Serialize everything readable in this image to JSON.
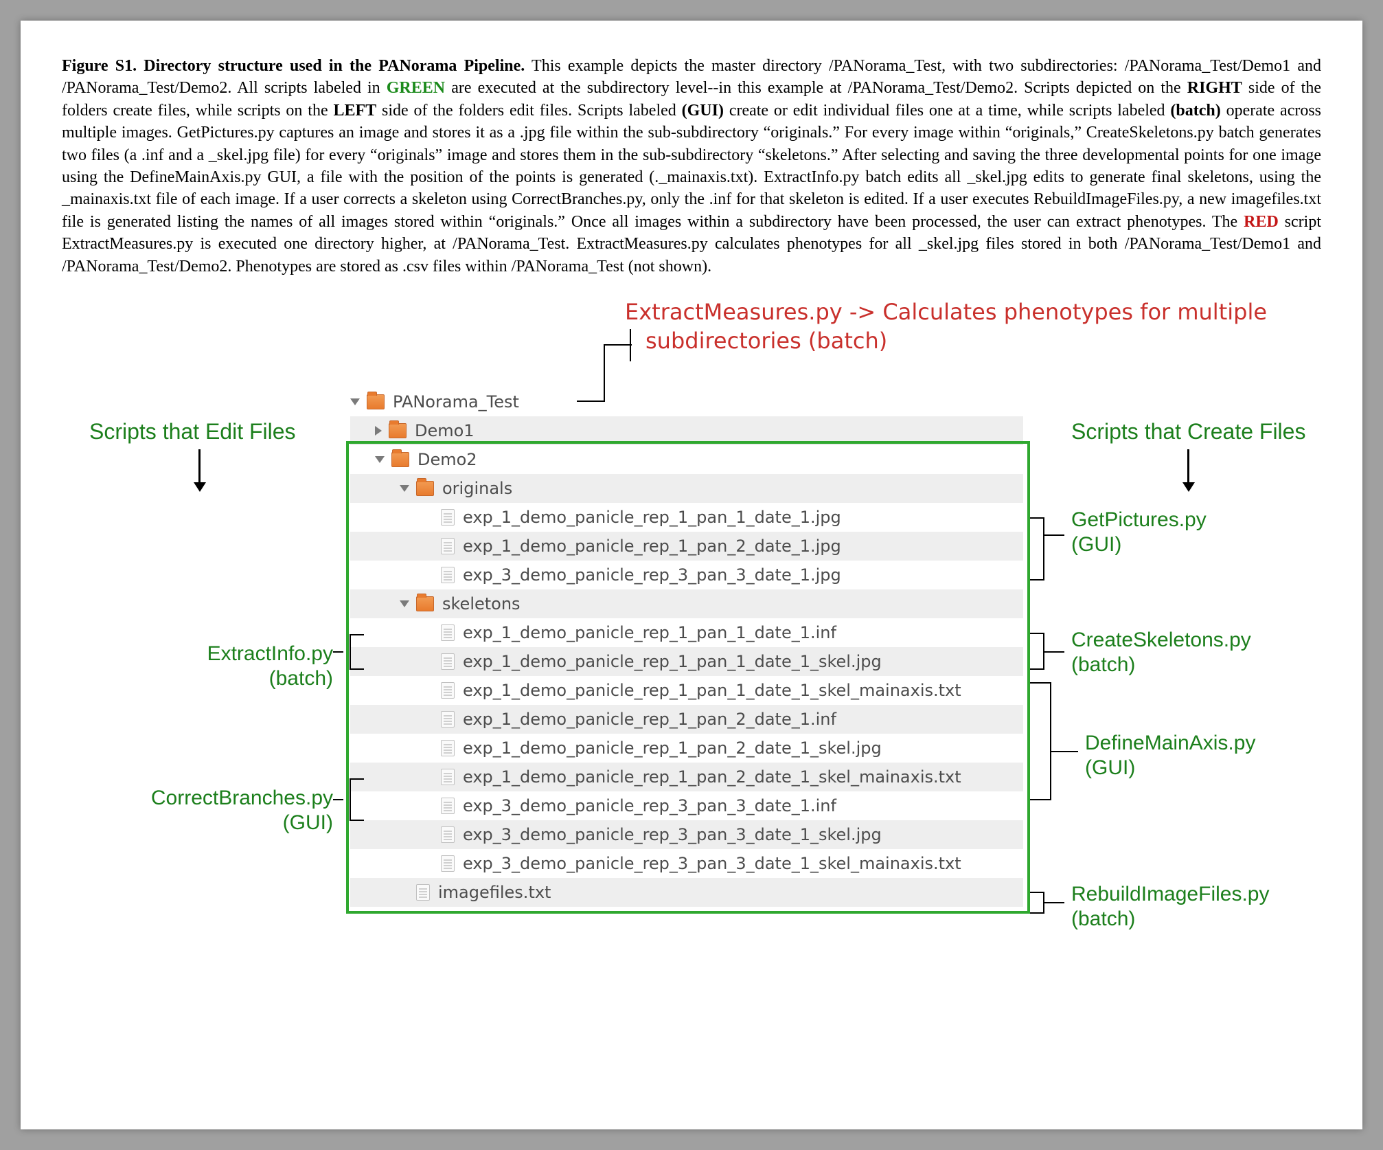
{
  "caption": {
    "title": "Figure S1.  Directory structure used in the PANorama Pipeline.",
    "body_parts": [
      {
        "t": "plain",
        "v": " This example depicts the master directory /PANorama_Test, with two subdirectories: /PANorama_Test/Demo1 and /PANorama_Test/Demo2.  All scripts labeled in "
      },
      {
        "t": "green",
        "v": "GREEN"
      },
      {
        "t": "plain",
        "v": " are executed at the subdirectory level--in this example at /PANorama_Test/Demo2.  Scripts depicted on the "
      },
      {
        "t": "bold",
        "v": "RIGHT"
      },
      {
        "t": "plain",
        "v": " side of the folders create files, while scripts on the "
      },
      {
        "t": "bold",
        "v": "LEFT"
      },
      {
        "t": "plain",
        "v": " side of the folders edit files.  Scripts labeled "
      },
      {
        "t": "bold",
        "v": "(GUI)"
      },
      {
        "t": "plain",
        "v": " create or edit individual files one at a time, while scripts labeled "
      },
      {
        "t": "bold",
        "v": "(batch)"
      },
      {
        "t": "plain",
        "v": " operate across multiple images.   GetPictures.py captures an image and stores it as a .jpg file within the sub-subdirectory “originals.”  For every image within “originals,” CreateSkeletons.py batch generates two files (a .inf and a _skel.jpg file) for every “originals” image and stores them in the sub-subdirectory “skeletons.”  After selecting and saving the three developmental points for one image using the DefineMainAxis.py GUI, a file with the position of the points is generated (._mainaxis.txt).  ExtractInfo.py batch edits all _skel.jpg edits to generate final skeletons, using the _mainaxis.txt file of each image.  If a user corrects a skeleton using CorrectBranches.py, only the .inf for that skeleton is edited.  If a user executes RebuildImageFiles.py, a new imagefiles.txt file is generated listing the names of all images stored within “originals.”  Once all images within a subdirectory have been processed, the user can extract phenotypes.  The "
      },
      {
        "t": "red",
        "v": "RED"
      },
      {
        "t": "plain",
        "v": " script ExtractMeasures.py is executed one directory higher, at /PANorama_Test.  ExtractMeasures.py calculates phenotypes for all _skel.jpg files stored in both /PANorama_Test/Demo1 and /PANorama_Test/Demo2.  Phenotypes are stored as .csv files within /PANorama_Test (not shown)."
      }
    ]
  },
  "colors": {
    "green": "#1c7f1c",
    "green_box": "#2fa82f",
    "red": "#c9302c",
    "folder": "#e87b2e",
    "row_alt": "#eeeeee",
    "text_grey": "#4c4c4c"
  },
  "red_annotation": {
    "line1": "ExtractMeasures.py -> Calculates phenotypes for multiple",
    "line2": "subdirectories (batch)"
  },
  "headers": {
    "left": "Scripts that Edit Files",
    "right": "Scripts that Create Files"
  },
  "left_scripts": [
    {
      "name": "ExtractInfo.py",
      "type": "(batch)"
    },
    {
      "name": "CorrectBranches.py",
      "type": "(GUI)"
    }
  ],
  "right_scripts": [
    {
      "name": "GetPictures.py",
      "type": "(GUI)"
    },
    {
      "name": "CreateSkeletons.py",
      "type": "(batch)"
    },
    {
      "name": "DefineMainAxis.py",
      "type": "(GUI)"
    },
    {
      "name": "RebuildImageFiles.py",
      "type": "(batch)"
    }
  ],
  "tree": [
    {
      "indent": 0,
      "tri": "down",
      "icon": "folder",
      "label": "PANorama_Test",
      "alt": false
    },
    {
      "indent": 1,
      "tri": "right",
      "icon": "folder",
      "label": "Demo1",
      "alt": true
    },
    {
      "indent": 1,
      "tri": "down",
      "icon": "folder",
      "label": "Demo2",
      "alt": false
    },
    {
      "indent": 2,
      "tri": "down",
      "icon": "folder",
      "label": "originals",
      "alt": true
    },
    {
      "indent": 3,
      "tri": "sp",
      "icon": "file",
      "label": "exp_1_demo_panicle_rep_1_pan_1_date_1.jpg",
      "alt": false
    },
    {
      "indent": 3,
      "tri": "sp",
      "icon": "file",
      "label": "exp_1_demo_panicle_rep_1_pan_2_date_1.jpg",
      "alt": true
    },
    {
      "indent": 3,
      "tri": "sp",
      "icon": "file",
      "label": "exp_3_demo_panicle_rep_3_pan_3_date_1.jpg",
      "alt": false
    },
    {
      "indent": 2,
      "tri": "down",
      "icon": "folder",
      "label": "skeletons",
      "alt": true
    },
    {
      "indent": 3,
      "tri": "sp",
      "icon": "file",
      "label": "exp_1_demo_panicle_rep_1_pan_1_date_1.inf",
      "alt": false
    },
    {
      "indent": 3,
      "tri": "sp",
      "icon": "file",
      "label": "exp_1_demo_panicle_rep_1_pan_1_date_1_skel.jpg",
      "alt": true
    },
    {
      "indent": 3,
      "tri": "sp",
      "icon": "file",
      "label": "exp_1_demo_panicle_rep_1_pan_1_date_1_skel_mainaxis.txt",
      "alt": false
    },
    {
      "indent": 3,
      "tri": "sp",
      "icon": "file",
      "label": "exp_1_demo_panicle_rep_1_pan_2_date_1.inf",
      "alt": true
    },
    {
      "indent": 3,
      "tri": "sp",
      "icon": "file",
      "label": "exp_1_demo_panicle_rep_1_pan_2_date_1_skel.jpg",
      "alt": false
    },
    {
      "indent": 3,
      "tri": "sp",
      "icon": "file",
      "label": "exp_1_demo_panicle_rep_1_pan_2_date_1_skel_mainaxis.txt",
      "alt": true
    },
    {
      "indent": 3,
      "tri": "sp",
      "icon": "file",
      "label": "exp_3_demo_panicle_rep_3_pan_3_date_1.inf",
      "alt": false
    },
    {
      "indent": 3,
      "tri": "sp",
      "icon": "file",
      "label": "exp_3_demo_panicle_rep_3_pan_3_date_1_skel.jpg",
      "alt": true
    },
    {
      "indent": 3,
      "tri": "sp",
      "icon": "file",
      "label": "exp_3_demo_panicle_rep_3_pan_3_date_1_skel_mainaxis.txt",
      "alt": false
    },
    {
      "indent": 2,
      "tri": "sp",
      "icon": "file",
      "label": "imagefiles.txt",
      "alt": true
    }
  ]
}
